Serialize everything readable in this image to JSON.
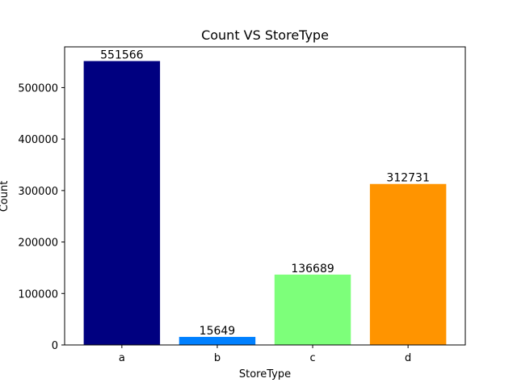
{
  "chart_data": {
    "type": "bar",
    "title": "Count VS StoreType",
    "xlabel": "StoreType",
    "ylabel": "Count",
    "categories": [
      "a",
      "b",
      "c",
      "d"
    ],
    "values": [
      551566,
      15649,
      136689,
      312731
    ],
    "data_labels": [
      "551566",
      "15649",
      "136689",
      "312731"
    ],
    "colors": [
      "#000080",
      "#0080ff",
      "#7dff7a",
      "#ff9400"
    ],
    "ylim": [
      0,
      579144
    ],
    "yticks": [
      0,
      100000,
      200000,
      300000,
      400000,
      500000
    ],
    "ytick_labels": [
      "0",
      "100000",
      "200000",
      "300000",
      "400000",
      "500000"
    ],
    "grid": false,
    "legend": "none"
  }
}
